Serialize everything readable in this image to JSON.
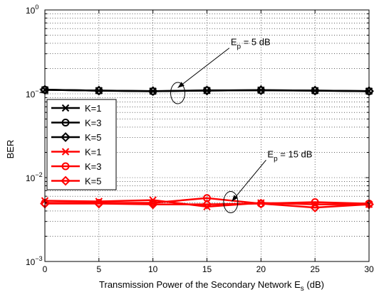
{
  "chart_data": {
    "type": "line",
    "title": "",
    "xlabel": "Transmission Power of the Secondary Network E",
    "xlabel_sub": "s",
    "xlabel_suffix": " (dB)",
    "ylabel": "BER",
    "y_scale": "log",
    "xlim": [
      0,
      30
    ],
    "ylim": [
      0.001,
      1
    ],
    "x_ticks": [
      "0",
      "5",
      "10",
      "15",
      "20",
      "25",
      "30"
    ],
    "y_ticks": [
      {
        "value": 1,
        "base": "10",
        "exp": "0"
      },
      {
        "value": 0.1,
        "base": "10",
        "exp": "−1"
      },
      {
        "value": 0.01,
        "base": "10",
        "exp": "−2"
      },
      {
        "value": 0.001,
        "base": "10",
        "exp": "−3"
      }
    ],
    "grid": true,
    "legend_position": "left-middle",
    "x": [
      0,
      5,
      10,
      15,
      20,
      25,
      30
    ],
    "series": [
      {
        "name": "K=1",
        "color": "#000000",
        "marker": "x",
        "values": [
          0.1115,
          0.1092,
          0.1076,
          0.1093,
          0.1106,
          0.1092,
          0.1076
        ]
      },
      {
        "name": "K=3",
        "color": "#000000",
        "marker": "circle",
        "values": [
          0.112,
          0.109,
          0.107,
          0.11,
          0.11,
          0.109,
          0.107
        ]
      },
      {
        "name": "K=5",
        "color": "#000000",
        "marker": "diamond",
        "values": [
          0.1115,
          0.1092,
          0.1076,
          0.1093,
          0.1106,
          0.1092,
          0.1076
        ]
      },
      {
        "name": "K=1",
        "color": "#ff0000",
        "marker": "x",
        "values": [
          0.0053,
          0.0052,
          0.0054,
          0.0045,
          0.005,
          0.0048,
          0.0048
        ]
      },
      {
        "name": "K=3",
        "color": "#ff0000",
        "marker": "circle",
        "values": [
          0.005,
          0.005,
          0.005,
          0.0057,
          0.0049,
          0.0051,
          0.0049
        ]
      },
      {
        "name": "K=5",
        "color": "#ff0000",
        "marker": "diamond",
        "values": [
          0.0049,
          0.0049,
          0.0048,
          0.0048,
          0.0049,
          0.0044,
          0.0048
        ]
      }
    ],
    "annotations": [
      {
        "label": "E",
        "sub": "p",
        "suffix": " = 5 dB",
        "x": 17.2,
        "y": 0.38,
        "target_x": 12.3,
        "target_y": 0.118,
        "ellipse_x": 12.3,
        "ellipse_y": 0.102
      },
      {
        "label": "E",
        "sub": "p",
        "suffix": " = 15 dB",
        "x": 20.6,
        "y": 0.0175,
        "target_x": 17.3,
        "target_y": 0.0052,
        "ellipse_x": 17.2,
        "ellipse_y": 0.0051
      }
    ]
  }
}
